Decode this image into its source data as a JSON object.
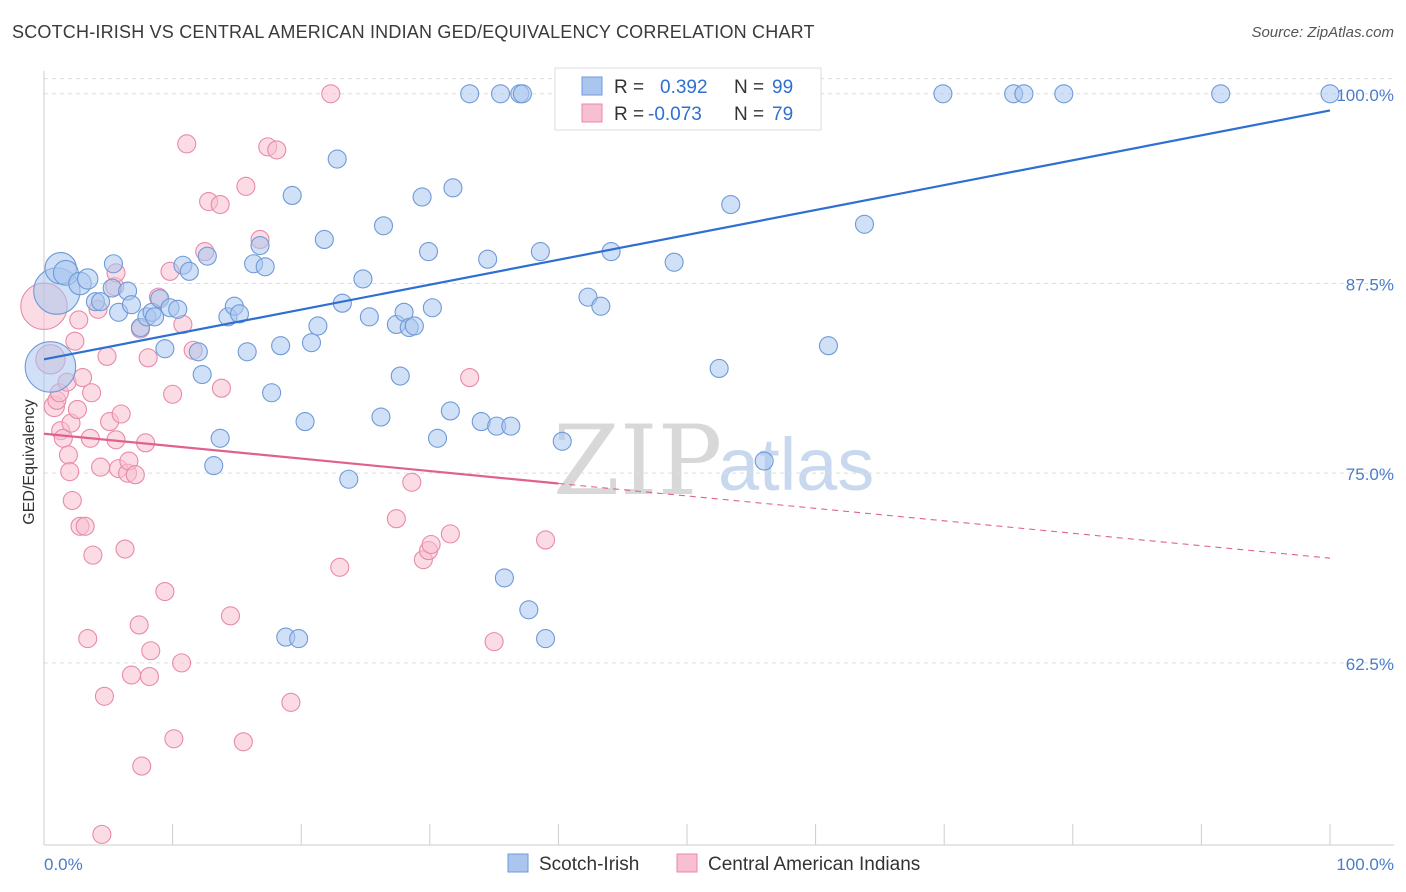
{
  "header": {
    "title": "SCOTCH-IRISH VS CENTRAL AMERICAN INDIAN GED/EQUIVALENCY CORRELATION CHART",
    "source": "Source: ZipAtlas.com"
  },
  "watermark": {
    "zip": "ZIP",
    "atlas": "atlas"
  },
  "colors": {
    "blue_fill": "#aac6ee",
    "blue_stroke": "#6f9ad8",
    "blue_line": "#2e6fd1",
    "pink_fill": "#f7bfd0",
    "pink_stroke": "#e98aa9",
    "pink_line": "#e0628c",
    "grid": "#dddddd",
    "axis_text": "#4a7cc9"
  },
  "legend": {
    "rows": [
      {
        "r_label": "R =",
        "r_value": "0.392",
        "n_label": "N =",
        "n_value": "99"
      },
      {
        "r_label": "R =",
        "r_value": "-0.073",
        "n_label": "N =",
        "n_value": "79"
      }
    ]
  },
  "chart_data": {
    "type": "scatter",
    "title": "SCOTCH-IRISH VS CENTRAL AMERICAN INDIAN GED/EQUIVALENCY CORRELATION CHART",
    "xlabel": "",
    "ylabel": "GED/Equivalency",
    "xlim": [
      0,
      100
    ],
    "ylim": [
      50.5,
      101.5
    ],
    "x_tick_labels": [
      "0.0%",
      "100.0%"
    ],
    "y_ticks": [
      62.5,
      75.0,
      87.5,
      100.0
    ],
    "y_tick_labels": [
      "62.5%",
      "75.0%",
      "87.5%",
      "100.0%"
    ],
    "grid": true,
    "legend_position": "top-center",
    "series": [
      {
        "name": "Scotch-Irish",
        "r": 0.392,
        "n": 99,
        "trend": {
          "x": [
            0,
            100
          ],
          "y": [
            82.5,
            98.9
          ],
          "dashed_from": null
        },
        "points": [
          [
            0.5,
            82.0,
            2.2
          ],
          [
            1.0,
            87.0,
            2.0
          ],
          [
            1.3,
            88.5,
            1.3
          ],
          [
            1.7,
            88.2,
            1.0
          ],
          [
            2.8,
            87.5,
            0.9
          ],
          [
            3.4,
            87.8,
            0.8
          ],
          [
            4.0,
            86.3,
            0.7
          ],
          [
            4.4,
            86.3,
            0.7
          ],
          [
            5.3,
            87.2,
            0.7
          ],
          [
            5.4,
            88.8,
            0.7
          ],
          [
            5.8,
            85.6,
            0.7
          ],
          [
            6.5,
            87.0,
            0.7
          ],
          [
            6.8,
            86.1,
            0.7
          ],
          [
            7.5,
            84.6,
            0.7
          ],
          [
            8.0,
            85.3,
            0.7
          ],
          [
            8.4,
            85.6,
            0.7
          ],
          [
            8.6,
            85.3,
            0.7
          ],
          [
            9.0,
            86.5,
            0.7
          ],
          [
            9.4,
            83.2,
            0.7
          ],
          [
            9.8,
            85.9,
            0.7
          ],
          [
            10.4,
            85.8,
            0.7
          ],
          [
            10.8,
            88.7,
            0.7
          ],
          [
            11.3,
            88.3,
            0.7
          ],
          [
            12.0,
            83.0,
            0.7
          ],
          [
            12.3,
            81.5,
            0.7
          ],
          [
            12.7,
            89.3,
            0.7
          ],
          [
            13.2,
            75.5,
            0.7
          ],
          [
            13.7,
            77.3,
            0.7
          ],
          [
            14.3,
            85.3,
            0.7
          ],
          [
            14.8,
            86.0,
            0.7
          ],
          [
            15.2,
            85.5,
            0.7
          ],
          [
            15.8,
            83.0,
            0.7
          ],
          [
            16.3,
            88.8,
            0.7
          ],
          [
            16.8,
            90.0,
            0.7
          ],
          [
            17.2,
            88.6,
            0.7
          ],
          [
            17.7,
            80.3,
            0.7
          ],
          [
            18.4,
            83.4,
            0.7
          ],
          [
            18.8,
            64.2,
            0.7
          ],
          [
            19.3,
            93.3,
            0.7
          ],
          [
            19.8,
            64.1,
            0.7
          ],
          [
            20.3,
            78.4,
            0.7
          ],
          [
            20.8,
            83.6,
            0.7
          ],
          [
            21.3,
            84.7,
            0.7
          ],
          [
            21.8,
            90.4,
            0.7
          ],
          [
            22.8,
            95.7,
            0.7
          ],
          [
            23.2,
            86.2,
            0.7
          ],
          [
            23.7,
            74.6,
            0.7
          ],
          [
            24.8,
            87.8,
            0.7
          ],
          [
            25.3,
            85.3,
            0.7
          ],
          [
            26.2,
            78.7,
            0.7
          ],
          [
            26.4,
            91.3,
            0.7
          ],
          [
            27.4,
            84.8,
            0.7
          ],
          [
            27.7,
            81.4,
            0.7
          ],
          [
            28.0,
            85.6,
            0.7
          ],
          [
            28.4,
            84.6,
            0.7
          ],
          [
            28.8,
            84.7,
            0.7
          ],
          [
            29.4,
            93.2,
            0.7
          ],
          [
            29.9,
            89.6,
            0.7
          ],
          [
            30.2,
            85.9,
            0.7
          ],
          [
            30.6,
            77.3,
            0.7
          ],
          [
            31.6,
            79.1,
            0.7
          ],
          [
            31.8,
            93.8,
            0.7
          ],
          [
            33.1,
            100.0,
            0.7
          ],
          [
            34.0,
            78.4,
            0.7
          ],
          [
            34.5,
            89.1,
            0.7
          ],
          [
            35.2,
            78.1,
            0.7
          ],
          [
            35.5,
            100.0,
            0.7
          ],
          [
            35.8,
            68.1,
            0.7
          ],
          [
            36.3,
            78.1,
            0.7
          ],
          [
            37.0,
            100.0,
            0.7
          ],
          [
            37.2,
            100.0,
            0.7
          ],
          [
            37.7,
            66.0,
            0.7
          ],
          [
            38.6,
            89.6,
            0.7
          ],
          [
            39.0,
            64.1,
            0.7
          ],
          [
            40.3,
            77.1,
            0.7
          ],
          [
            40.8,
            100.0,
            0.7
          ],
          [
            42.3,
            86.6,
            0.7
          ],
          [
            43.3,
            86.0,
            0.7
          ],
          [
            44.1,
            89.6,
            0.7
          ],
          [
            47.5,
            100.0,
            0.7
          ],
          [
            49.0,
            88.9,
            0.7
          ],
          [
            52.4,
            100.0,
            0.7
          ],
          [
            52.5,
            81.9,
            0.7
          ],
          [
            53.4,
            92.7,
            0.7
          ],
          [
            56.0,
            75.8,
            0.7
          ],
          [
            58.7,
            100.0,
            0.7
          ],
          [
            61.0,
            83.4,
            0.7
          ],
          [
            63.8,
            91.4,
            0.7
          ],
          [
            69.9,
            100.0,
            0.7
          ],
          [
            75.4,
            100.0,
            0.7
          ],
          [
            76.2,
            100.0,
            0.7
          ],
          [
            79.3,
            100.0,
            0.7
          ],
          [
            91.5,
            100.0,
            0.7
          ],
          [
            100.0,
            100.0,
            0.7
          ]
        ]
      },
      {
        "name": "Central American Indians",
        "r": -0.073,
        "n": 79,
        "trend": {
          "x": [
            0,
            100
          ],
          "y": [
            77.6,
            69.4
          ],
          "dashed_from": 40
        },
        "points": [
          [
            0.0,
            86.0,
            2.0
          ],
          [
            0.5,
            82.5,
            1.2
          ],
          [
            0.8,
            79.4,
            0.8
          ],
          [
            1.0,
            79.8,
            0.7
          ],
          [
            1.2,
            80.3,
            0.7
          ],
          [
            1.3,
            77.8,
            0.7
          ],
          [
            1.5,
            77.3,
            0.7
          ],
          [
            1.8,
            81.0,
            0.7
          ],
          [
            1.9,
            76.2,
            0.7
          ],
          [
            2.1,
            78.3,
            0.7
          ],
          [
            2.0,
            75.1,
            0.7
          ],
          [
            2.2,
            73.2,
            0.7
          ],
          [
            2.4,
            83.7,
            0.7
          ],
          [
            2.6,
            79.2,
            0.7
          ],
          [
            2.7,
            85.1,
            0.7
          ],
          [
            2.8,
            71.5,
            0.7
          ],
          [
            3.0,
            81.3,
            0.7
          ],
          [
            3.2,
            71.5,
            0.7
          ],
          [
            3.4,
            64.1,
            0.7
          ],
          [
            3.6,
            77.3,
            0.7
          ],
          [
            3.7,
            80.3,
            0.7
          ],
          [
            3.8,
            69.6,
            0.7
          ],
          [
            4.2,
            85.8,
            0.7
          ],
          [
            4.4,
            75.4,
            0.7
          ],
          [
            4.5,
            51.2,
            0.7
          ],
          [
            4.7,
            60.3,
            0.7
          ],
          [
            4.9,
            82.7,
            0.7
          ],
          [
            5.1,
            78.4,
            0.7
          ],
          [
            5.5,
            87.3,
            0.7
          ],
          [
            5.6,
            77.2,
            0.7
          ],
          [
            5.6,
            88.2,
            0.7
          ],
          [
            5.8,
            75.3,
            0.7
          ],
          [
            6.0,
            78.9,
            0.7
          ],
          [
            6.3,
            70.0,
            0.7
          ],
          [
            6.5,
            75.0,
            0.7
          ],
          [
            6.6,
            75.8,
            0.7
          ],
          [
            6.8,
            61.7,
            0.7
          ],
          [
            7.1,
            74.9,
            0.7
          ],
          [
            7.4,
            65.0,
            0.7
          ],
          [
            7.5,
            84.5,
            0.7
          ],
          [
            7.6,
            55.7,
            0.7
          ],
          [
            7.9,
            77.0,
            0.7
          ],
          [
            8.1,
            82.6,
            0.7
          ],
          [
            8.2,
            61.6,
            0.7
          ],
          [
            8.3,
            63.3,
            0.7
          ],
          [
            8.9,
            86.6,
            0.7
          ],
          [
            9.4,
            67.2,
            0.7
          ],
          [
            9.8,
            88.3,
            0.7
          ],
          [
            10.1,
            57.5,
            0.7
          ],
          [
            10.0,
            80.2,
            0.7
          ],
          [
            10.7,
            62.5,
            0.7
          ],
          [
            10.8,
            84.8,
            0.7
          ],
          [
            11.1,
            96.7,
            0.7
          ],
          [
            11.6,
            83.1,
            0.7
          ],
          [
            12.5,
            89.6,
            0.7
          ],
          [
            12.8,
            92.9,
            0.7
          ],
          [
            13.8,
            80.6,
            0.7
          ],
          [
            13.7,
            92.7,
            0.7
          ],
          [
            14.5,
            65.6,
            0.7
          ],
          [
            15.5,
            57.3,
            0.7
          ],
          [
            15.7,
            93.9,
            0.7
          ],
          [
            16.8,
            90.4,
            0.7
          ],
          [
            17.4,
            96.5,
            0.7
          ],
          [
            18.1,
            96.3,
            0.7
          ],
          [
            19.2,
            59.9,
            0.7
          ],
          [
            22.3,
            100.0,
            0.7
          ],
          [
            23.0,
            68.8,
            0.7
          ],
          [
            27.4,
            72.0,
            0.7
          ],
          [
            28.6,
            74.4,
            0.7
          ],
          [
            29.5,
            69.3,
            0.7
          ],
          [
            29.9,
            69.9,
            0.7
          ],
          [
            30.1,
            70.3,
            0.7
          ],
          [
            31.6,
            71.0,
            0.7
          ],
          [
            33.1,
            81.3,
            0.7
          ],
          [
            35.0,
            63.9,
            0.7
          ],
          [
            39.0,
            70.6,
            0.7
          ]
        ]
      }
    ]
  },
  "bottom_legend": {
    "items": [
      {
        "label": "Scotch-Irish"
      },
      {
        "label": "Central American Indians"
      }
    ]
  }
}
